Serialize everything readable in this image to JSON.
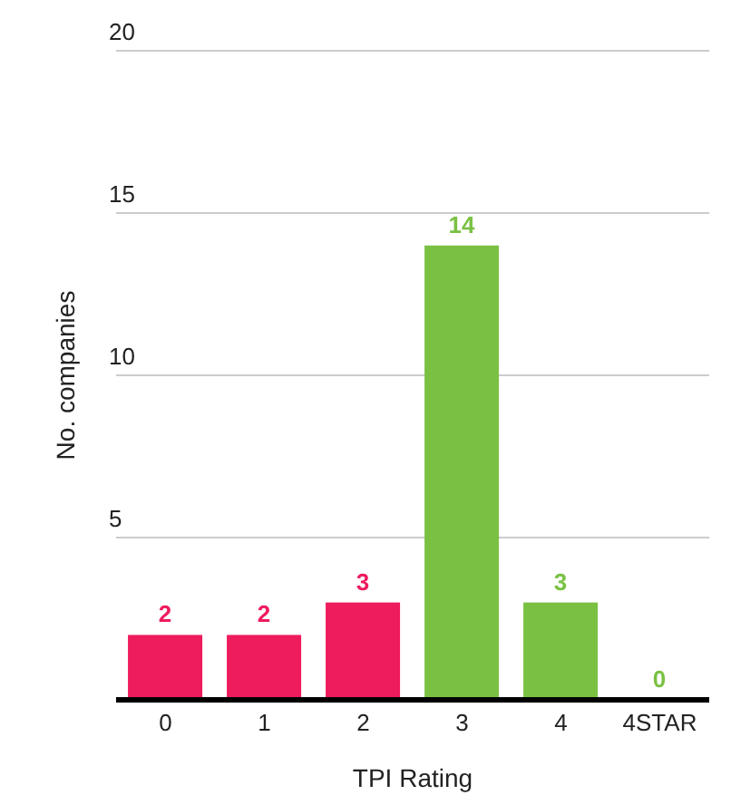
{
  "chart_data": {
    "type": "bar",
    "xlabel": "TPI Rating",
    "ylabel": "No. companies",
    "categories": [
      "0",
      "1",
      "2",
      "3",
      "4",
      "4STAR"
    ],
    "values": [
      2,
      2,
      3,
      14,
      3,
      0
    ],
    "colors": [
      "#ee1b5d",
      "#ee1b5d",
      "#ee1b5d",
      "#7ac143",
      "#7ac143",
      "#7ac143"
    ],
    "ylim": [
      0,
      20
    ],
    "yticks": [
      {
        "value": 0,
        "label": null
      },
      5,
      10,
      15,
      20
    ],
    "grid": "y",
    "data_labels": true
  }
}
